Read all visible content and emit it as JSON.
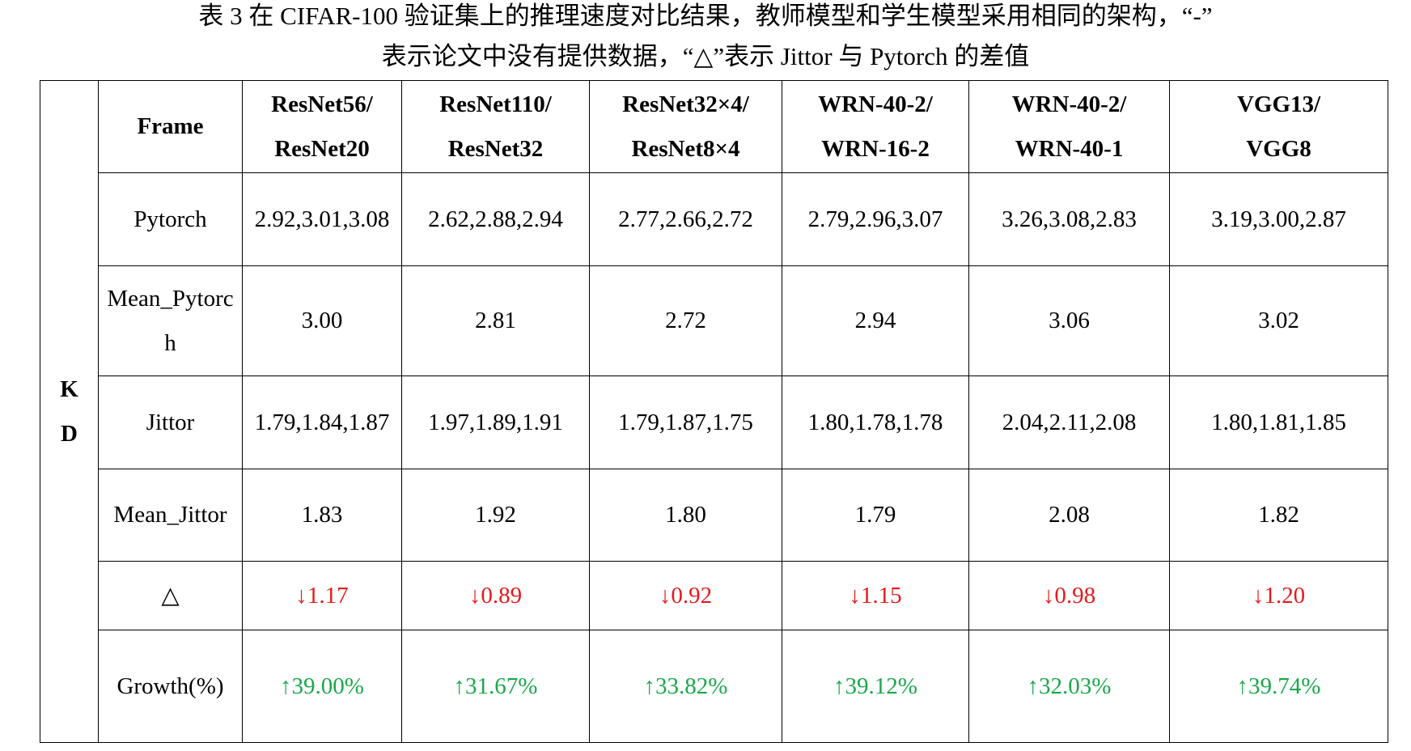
{
  "caption": {
    "line1": "表 3 在  CIFAR-100  验证集上的推理速度对比结果，教师模型和学生模型采用相同的架构，“-”",
    "line2": "表示论文中没有提供数据，“△”表示 Jittor 与 Pytorch 的差值"
  },
  "table": {
    "group_label": "KD",
    "header": {
      "frame": "Frame",
      "columns": [
        {
          "l1": "ResNet56/",
          "l2": "ResNet20"
        },
        {
          "l1": "ResNet110/",
          "l2": "ResNet32"
        },
        {
          "l1": "ResNet32×4/",
          "l2": "ResNet8×4"
        },
        {
          "l1": "WRN-40-2/",
          "l2": "WRN-16-2"
        },
        {
          "l1": "WRN-40-2/",
          "l2": "WRN-40-1"
        },
        {
          "l1": "VGG13/",
          "l2": "VGG8"
        }
      ]
    },
    "rows": [
      {
        "label": "Pytorch",
        "cells": [
          "2.92,3.01,3.08",
          "2.62,2.88,2.94",
          "2.77,2.66,2.72",
          "2.79,2.96,3.07",
          "3.26,3.08,2.83",
          "3.19,3.00,2.87"
        ]
      },
      {
        "label": "Mean_Pytorch",
        "cells": [
          "3.00",
          "2.81",
          "2.72",
          "2.94",
          "3.06",
          "3.02"
        ]
      },
      {
        "label": "Jittor",
        "cells": [
          "1.79,1.84,1.87",
          "1.97,1.89,1.91",
          "1.79,1.87,1.75",
          "1.80,1.78,1.78",
          "2.04,2.11,2.08",
          "1.80,1.81,1.85"
        ]
      },
      {
        "label": "Mean_Jittor",
        "cells": [
          "1.83",
          "1.92",
          "1.80",
          "1.79",
          "2.08",
          "1.82"
        ]
      },
      {
        "label": "△",
        "cells": [
          "↓1.17",
          "↓0.89",
          "↓0.92",
          "↓1.15",
          "↓0.98",
          "↓1.20"
        ]
      },
      {
        "label": "Growth(%)",
        "cells": [
          "↑39.00%",
          "↑31.67%",
          "↑33.82%",
          "↑39.12%",
          "↑32.03%",
          "↑39.74%"
        ]
      }
    ],
    "colors": {
      "decrease": "#e8191c",
      "increase": "#18a84a"
    }
  }
}
